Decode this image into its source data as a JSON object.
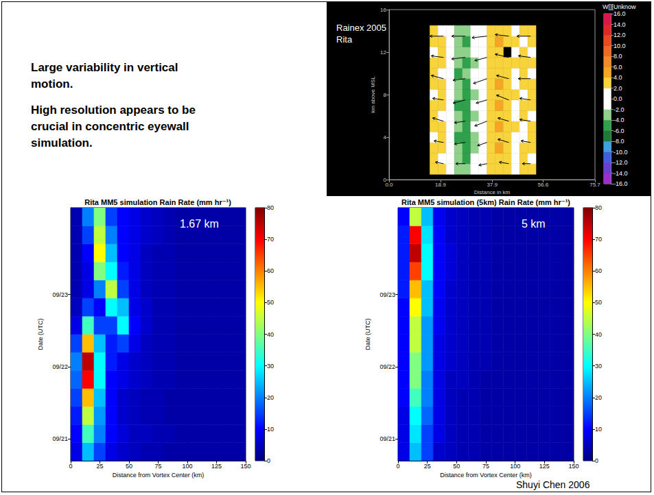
{
  "slide": {
    "bullets": [
      "Large variability in vertical motion.",
      "High resolution appears to be crucial in concentric eyewall simulation."
    ],
    "credit": "Shuyi Chen 2006"
  },
  "chart_data": [
    {
      "type": "heatmap",
      "annotations": [
        "Rainex 2005",
        "Rita"
      ],
      "xlabel": "Distance in km",
      "ylabel": "km above MSL",
      "xlim": [
        0,
        75.7
      ],
      "xticks": [
        {
          "value": 0,
          "label": "0.0"
        },
        18.9,
        37.9,
        56.6,
        75.7
      ],
      "ylim": [
        0,
        16
      ],
      "yticks": [
        0,
        4,
        8,
        12,
        16
      ],
      "cells": {
        "x_bins": [
          15,
          18,
          21,
          24,
          27,
          30,
          33,
          36,
          39,
          42,
          45,
          48,
          51,
          54
        ],
        "y_bins": [
          0.5,
          1.5,
          2.5,
          3.5,
          4.5,
          5.5,
          6.5,
          7.5,
          8.5,
          9.5,
          10.5,
          11.5,
          12.5,
          13.5,
          14.5
        ],
        "values": [
          [
            3,
            3,
            0,
            -3,
            -3,
            -1,
            0,
            3,
            3,
            3,
            0,
            3,
            3
          ],
          [
            3,
            0,
            0,
            -3,
            -5,
            -1,
            0,
            3,
            3,
            3,
            0,
            3,
            0
          ],
          [
            3,
            3,
            -1,
            -3,
            -5,
            -3,
            0,
            3,
            5,
            3,
            0,
            3,
            3
          ],
          [
            0,
            3,
            0,
            -5,
            -5,
            -3,
            0,
            3,
            3,
            3,
            0,
            0,
            3
          ],
          [
            3,
            3,
            0,
            -3,
            -5,
            -1,
            0,
            3,
            5,
            3,
            3,
            0,
            3
          ],
          [
            3,
            0,
            -1,
            -3,
            -5,
            -3,
            0,
            3,
            3,
            3,
            0,
            3,
            0
          ],
          [
            3,
            3,
            0,
            -5,
            -5,
            -1,
            0,
            3,
            5,
            3,
            0,
            3,
            3
          ],
          [
            0,
            3,
            -1,
            -3,
            -5,
            -3,
            0,
            3,
            3,
            3,
            3,
            0,
            3
          ],
          [
            3,
            3,
            0,
            -3,
            -5,
            -1,
            0,
            3,
            5,
            3,
            0,
            3,
            3
          ],
          [
            3,
            0,
            0,
            -5,
            -3,
            -1,
            0,
            3,
            3,
            3,
            0,
            3,
            0
          ],
          [
            3,
            3,
            -1,
            -3,
            -5,
            -3,
            0,
            3,
            3,
            3,
            3,
            3,
            3
          ],
          [
            0,
            3,
            0,
            -3,
            -3,
            -1,
            0,
            3,
            3,
            null,
            0,
            3,
            0
          ],
          [
            3,
            3,
            0,
            -3,
            -5,
            0,
            0,
            3,
            5,
            3,
            3,
            0,
            3
          ],
          [
            3,
            0,
            0,
            -3,
            -3,
            0,
            0,
            3,
            3,
            3,
            0,
            3,
            3
          ]
        ]
      },
      "colorbar": {
        "label": "W[][Unknow",
        "range": [
          -16,
          16
        ],
        "ticks": [
          {
            "value": 16,
            "label": "16.0"
          },
          {
            "value": 14,
            "label": "14.0"
          },
          {
            "value": 12,
            "label": "12.0"
          },
          {
            "value": 10,
            "label": "10.0"
          },
          {
            "value": 8,
            "label": "8.0"
          },
          {
            "value": 6,
            "label": "6.0"
          },
          {
            "value": 4,
            "label": "4.0"
          },
          {
            "value": 2,
            "label": "2.0"
          },
          {
            "value": 0,
            "label": "0.0"
          },
          {
            "value": -2,
            "label": "-2.0"
          },
          {
            "value": -4,
            "label": "-4.0"
          },
          {
            "value": -6,
            "label": "-6.0"
          },
          {
            "value": -8,
            "label": "-8.0"
          },
          {
            "value": -10,
            "label": "-10.0"
          },
          {
            "value": -12,
            "label": "-12.0"
          },
          {
            "value": -14,
            "label": "-14.0"
          },
          {
            "value": -16,
            "label": "-16.0"
          }
        ],
        "colors": [
          "#9b30c8",
          "#6a3fd0",
          "#3f5fe0",
          "#3fa0e0",
          "#1f7a3a",
          "#2fa04c",
          "#8fd08a",
          "#ffffff",
          "#ffffff",
          "#f7d33c",
          "#f5a524",
          "#f08a2a",
          "#ee6a24",
          "#e84a22",
          "#e02828",
          "#d8184c"
        ]
      },
      "wind": {
        "x": [
          20,
          28,
          36,
          44,
          52,
          20,
          28,
          36,
          44,
          52,
          20,
          28,
          36,
          44,
          52,
          20,
          28,
          36,
          44,
          52,
          20,
          28,
          36,
          44,
          52,
          20,
          28,
          36,
          44,
          52,
          20,
          28,
          36,
          44,
          52
        ],
        "z": [
          1.5,
          1.5,
          1.5,
          1.5,
          1.5,
          3.5,
          3.5,
          3.5,
          3.5,
          3.5,
          5.5,
          5.5,
          5.5,
          5.5,
          5.5,
          7.5,
          7.5,
          7.5,
          7.5,
          7.5,
          9.5,
          9.5,
          9.5,
          9.5,
          9.5,
          11.5,
          11.5,
          11.5,
          11.5,
          11.5,
          13.5,
          13.5,
          13.5,
          13.5,
          13.5
        ],
        "u": [
          -6,
          -7,
          -6,
          -7,
          -6,
          -7,
          -8,
          -7,
          -8,
          -7,
          -8,
          -8,
          -9,
          -8,
          -8,
          -8,
          -9,
          -8,
          -9,
          -8,
          -9,
          -9,
          -10,
          -9,
          -9,
          -9,
          -10,
          -9,
          -10,
          -9,
          -10,
          -10,
          -11,
          -10,
          -10
        ],
        "w": [
          1,
          0,
          -1,
          1,
          0,
          1,
          -1,
          -2,
          2,
          1,
          2,
          -1,
          -3,
          2,
          1,
          1,
          -2,
          -2,
          3,
          1,
          2,
          -1,
          -3,
          2,
          0,
          1,
          -1,
          -2,
          2,
          1,
          0,
          0,
          -1,
          1,
          0
        ]
      }
    },
    {
      "type": "heatmap",
      "title": "Rita MM5 simulation Rain Rate (mm hr⁻¹)",
      "annotations": [
        "1.67 km"
      ],
      "xlabel": "Distance from Vortex Center (km)",
      "ylabel": "Date (UTC)",
      "xlim": [
        0,
        150
      ],
      "xticks": [
        0,
        25,
        50,
        75,
        100,
        125,
        150
      ],
      "ylim": [
        20.7,
        24.2
      ],
      "yticks": [
        {
          "value": 21,
          "label": "09/21"
        },
        {
          "value": 22,
          "label": "09/22"
        },
        {
          "value": 23,
          "label": "09/23"
        }
      ],
      "cells": {
        "x_bins": [
          0,
          10,
          20,
          30,
          40,
          50,
          60,
          70,
          80,
          90,
          100,
          110,
          120,
          130,
          140,
          150
        ],
        "y_bins": [
          20.7,
          20.95,
          21.2,
          21.45,
          21.7,
          21.95,
          22.2,
          22.45,
          22.7,
          22.95,
          23.2,
          23.45,
          23.7,
          23.95,
          24.2
        ],
        "values": [
          [
            8,
            25,
            15,
            8,
            6,
            5,
            4,
            4,
            3,
            3,
            3,
            3,
            3,
            3,
            3
          ],
          [
            10,
            35,
            20,
            10,
            7,
            5,
            5,
            4,
            4,
            3,
            3,
            3,
            3,
            3,
            3
          ],
          [
            12,
            45,
            22,
            10,
            6,
            5,
            4,
            4,
            3,
            3,
            3,
            3,
            3,
            3,
            3
          ],
          [
            15,
            55,
            25,
            10,
            6,
            5,
            4,
            4,
            3,
            3,
            3,
            3,
            3,
            3,
            3
          ],
          [
            18,
            70,
            30,
            10,
            8,
            6,
            5,
            4,
            4,
            3,
            3,
            3,
            3,
            3,
            3
          ],
          [
            20,
            75,
            30,
            12,
            8,
            6,
            5,
            4,
            4,
            3,
            3,
            3,
            3,
            3,
            3
          ],
          [
            15,
            55,
            25,
            12,
            15,
            8,
            5,
            4,
            4,
            3,
            3,
            3,
            3,
            3,
            3
          ],
          [
            8,
            35,
            15,
            15,
            30,
            10,
            6,
            4,
            4,
            3,
            3,
            3,
            3,
            3,
            3
          ],
          [
            5,
            15,
            10,
            30,
            25,
            8,
            6,
            4,
            4,
            3,
            3,
            3,
            3,
            3,
            3
          ],
          [
            4,
            8,
            20,
            45,
            15,
            8,
            5,
            4,
            4,
            3,
            3,
            3,
            3,
            3,
            3
          ],
          [
            4,
            8,
            40,
            30,
            12,
            8,
            5,
            4,
            4,
            3,
            3,
            3,
            3,
            3,
            3
          ],
          [
            4,
            10,
            50,
            25,
            10,
            8,
            5,
            4,
            4,
            3,
            3,
            3,
            3,
            3,
            3
          ],
          [
            4,
            15,
            45,
            20,
            10,
            8,
            6,
            5,
            4,
            3,
            3,
            3,
            3,
            3,
            3
          ],
          [
            4,
            20,
            40,
            15,
            10,
            8,
            6,
            5,
            4,
            3,
            3,
            3,
            3,
            3,
            3
          ]
        ]
      },
      "colorbar": {
        "range": [
          0,
          80
        ],
        "ticks": [
          0,
          10,
          20,
          30,
          40,
          50,
          60,
          70,
          80
        ]
      }
    },
    {
      "type": "heatmap",
      "title": "Rita MM5 simulation (5km) Rain Rate (mm hr⁻¹)",
      "annotations": [
        "5 km"
      ],
      "xlabel": "Distance from Vortex Center (km)",
      "ylabel": "Date (UTC)",
      "xlim": [
        0,
        150
      ],
      "xticks": [
        0,
        25,
        50,
        75,
        100,
        125,
        150
      ],
      "ylim": [
        20.7,
        24.2
      ],
      "yticks": [
        {
          "value": 21,
          "label": "09/21"
        },
        {
          "value": 22,
          "label": "09/22"
        },
        {
          "value": 23,
          "label": "09/23"
        }
      ],
      "cells": {
        "x_bins": [
          0,
          10,
          20,
          30,
          40,
          50,
          60,
          70,
          80,
          90,
          100,
          110,
          120,
          130,
          140,
          150
        ],
        "y_bins": [
          20.7,
          20.95,
          21.2,
          21.45,
          21.7,
          21.95,
          22.2,
          22.45,
          22.7,
          22.95,
          23.2,
          23.45,
          23.7,
          23.95,
          24.2
        ],
        "values": [
          [
            8,
            25,
            15,
            6,
            5,
            4,
            4,
            3,
            3,
            3,
            3,
            3,
            3,
            3,
            3
          ],
          [
            8,
            28,
            15,
            8,
            5,
            4,
            4,
            3,
            3,
            3,
            3,
            3,
            3,
            3,
            3
          ],
          [
            8,
            30,
            18,
            8,
            5,
            4,
            4,
            3,
            3,
            3,
            3,
            3,
            3,
            3,
            3
          ],
          [
            10,
            35,
            20,
            8,
            5,
            4,
            4,
            3,
            3,
            3,
            3,
            3,
            3,
            3,
            3
          ],
          [
            10,
            40,
            20,
            8,
            5,
            5,
            4,
            3,
            3,
            3,
            3,
            3,
            3,
            3,
            3
          ],
          [
            10,
            40,
            22,
            8,
            6,
            5,
            4,
            4,
            3,
            3,
            3,
            3,
            3,
            3,
            3
          ],
          [
            10,
            45,
            22,
            8,
            6,
            5,
            4,
            4,
            3,
            3,
            3,
            3,
            3,
            3,
            3
          ],
          [
            10,
            45,
            22,
            9,
            6,
            5,
            4,
            4,
            3,
            3,
            3,
            3,
            3,
            3,
            3
          ],
          [
            10,
            50,
            25,
            9,
            6,
            5,
            4,
            4,
            3,
            3,
            3,
            3,
            3,
            3,
            3
          ],
          [
            12,
            55,
            25,
            10,
            6,
            5,
            4,
            4,
            3,
            3,
            3,
            3,
            3,
            3,
            3
          ],
          [
            12,
            65,
            30,
            10,
            7,
            5,
            4,
            4,
            3,
            3,
            3,
            3,
            3,
            3,
            3
          ],
          [
            12,
            75,
            30,
            10,
            7,
            5,
            4,
            4,
            3,
            3,
            3,
            3,
            3,
            3,
            3
          ],
          [
            12,
            70,
            28,
            10,
            6,
            5,
            4,
            4,
            3,
            3,
            3,
            3,
            3,
            3,
            3
          ],
          [
            10,
            45,
            25,
            9,
            6,
            5,
            4,
            4,
            3,
            3,
            3,
            3,
            3,
            3,
            3
          ]
        ]
      },
      "colorbar": {
        "range": [
          0,
          80
        ],
        "ticks": [
          0,
          10,
          20,
          30,
          40,
          50,
          60,
          70,
          80
        ]
      }
    }
  ]
}
